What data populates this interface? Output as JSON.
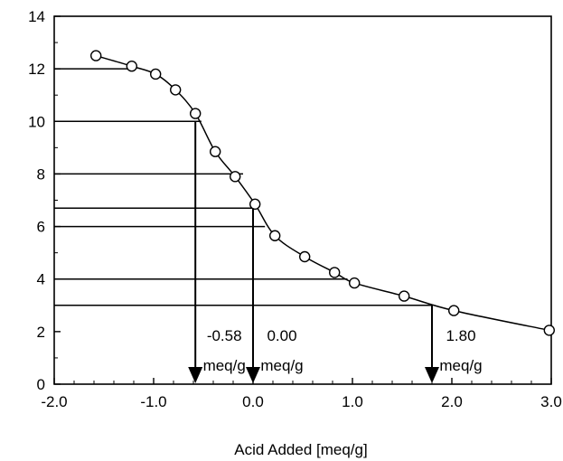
{
  "chart_data": {
    "type": "scatter",
    "xlabel": "Acid Added [meq/g]",
    "ylabel": "",
    "xlim": [
      -2.0,
      3.0
    ],
    "ylim": [
      0,
      14
    ],
    "x_ticks": [
      "-2.0",
      "-1.0",
      "0.0",
      "1.0",
      "2.0",
      "3.0"
    ],
    "y_ticks": [
      "0",
      "2",
      "4",
      "6",
      "8",
      "10",
      "12",
      "14"
    ],
    "grid": false,
    "series": [
      {
        "marker": "open-circle",
        "line": "smooth",
        "points": [
          {
            "x": -1.58,
            "y": 12.5
          },
          {
            "x": -1.22,
            "y": 12.1
          },
          {
            "x": -0.98,
            "y": 11.8
          },
          {
            "x": -0.78,
            "y": 11.2
          },
          {
            "x": -0.58,
            "y": 10.3
          },
          {
            "x": -0.38,
            "y": 8.85
          },
          {
            "x": -0.18,
            "y": 7.9
          },
          {
            "x": 0.02,
            "y": 6.85
          },
          {
            "x": 0.22,
            "y": 5.65
          },
          {
            "x": 0.52,
            "y": 4.85
          },
          {
            "x": 0.82,
            "y": 4.25
          },
          {
            "x": 1.02,
            "y": 3.85
          },
          {
            "x": 1.52,
            "y": 3.35
          },
          {
            "x": 2.02,
            "y": 2.8
          },
          {
            "x": 2.98,
            "y": 2.05
          }
        ]
      }
    ],
    "reference_lines": [
      {
        "y": 12.0,
        "x_end": -1.22
      },
      {
        "y": 10.0,
        "x_end": -0.52
      },
      {
        "y": 8.0,
        "x_end": -0.1
      },
      {
        "y": 6.7,
        "x_end": 0.0
      },
      {
        "y": 6.0,
        "x_end": 0.12
      },
      {
        "y": 4.0,
        "x_end": 0.95
      },
      {
        "y": 3.0,
        "x_end": 1.8
      }
    ],
    "arrows": [
      {
        "x": -0.58,
        "y_from": 10.0,
        "label_line1": "-0.58",
        "label_line2": "meq/g"
      },
      {
        "x": 0.0,
        "y_from": 6.7,
        "label_line1": "0.00",
        "label_line2": "meq/g"
      },
      {
        "x": 1.8,
        "y_from": 3.0,
        "label_line1": "1.80",
        "label_line2": "meq/g"
      }
    ]
  }
}
